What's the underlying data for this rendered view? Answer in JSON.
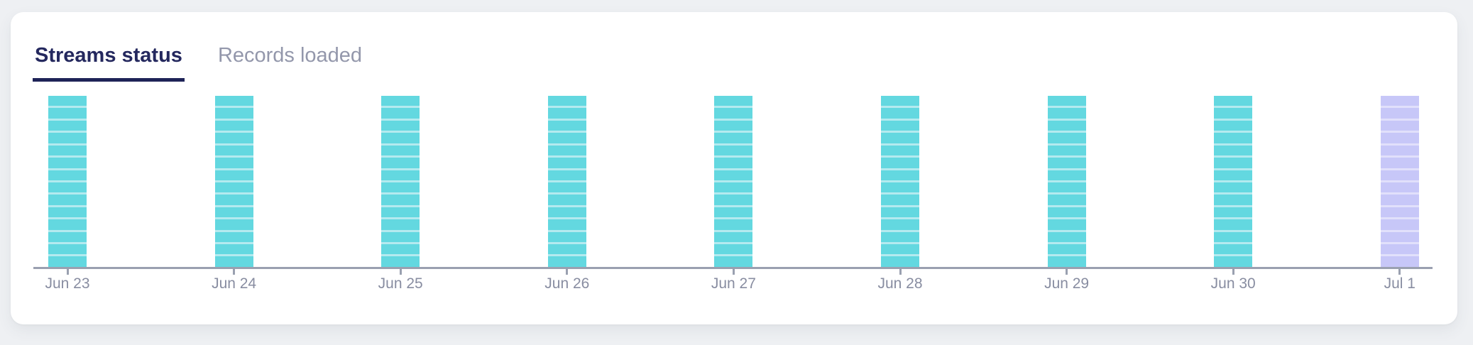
{
  "tabs": [
    {
      "label": "Streams status",
      "active": true
    },
    {
      "label": "Records loaded",
      "active": false
    }
  ],
  "chart_data": {
    "type": "bar",
    "subtype": "stacked-segment-status",
    "title": "",
    "xlabel": "",
    "ylabel": "",
    "legend": "none",
    "grid": "off",
    "axis_color": "#9aa0b0",
    "tick_label_color": "#888da1",
    "categories": [
      "Jun 23",
      "Jun 24",
      "Jun 25",
      "Jun 26",
      "Jun 27",
      "Jun 28",
      "Jun 29",
      "Jun 30",
      "Jul 1"
    ],
    "bars": [
      {
        "category": "Jun 23",
        "segments": 14,
        "color": "#63d8e0",
        "divider_color": "#b4eaef"
      },
      {
        "category": "Jun 24",
        "segments": 14,
        "color": "#63d8e0",
        "divider_color": "#b4eaef"
      },
      {
        "category": "Jun 25",
        "segments": 14,
        "color": "#63d8e0",
        "divider_color": "#b4eaef"
      },
      {
        "category": "Jun 26",
        "segments": 14,
        "color": "#63d8e0",
        "divider_color": "#b4eaef"
      },
      {
        "category": "Jun 27",
        "segments": 14,
        "color": "#63d8e0",
        "divider_color": "#b4eaef"
      },
      {
        "category": "Jun 28",
        "segments": 14,
        "color": "#63d8e0",
        "divider_color": "#b4eaef"
      },
      {
        "category": "Jun 29",
        "segments": 14,
        "color": "#63d8e0",
        "divider_color": "#b4eaef"
      },
      {
        "category": "Jun 30",
        "segments": 14,
        "color": "#63d8e0",
        "divider_color": "#b4eaef"
      },
      {
        "category": "Jul 1",
        "segments": 14,
        "color": "#c7c7f8",
        "divider_color": "#e1e0fb"
      }
    ]
  }
}
